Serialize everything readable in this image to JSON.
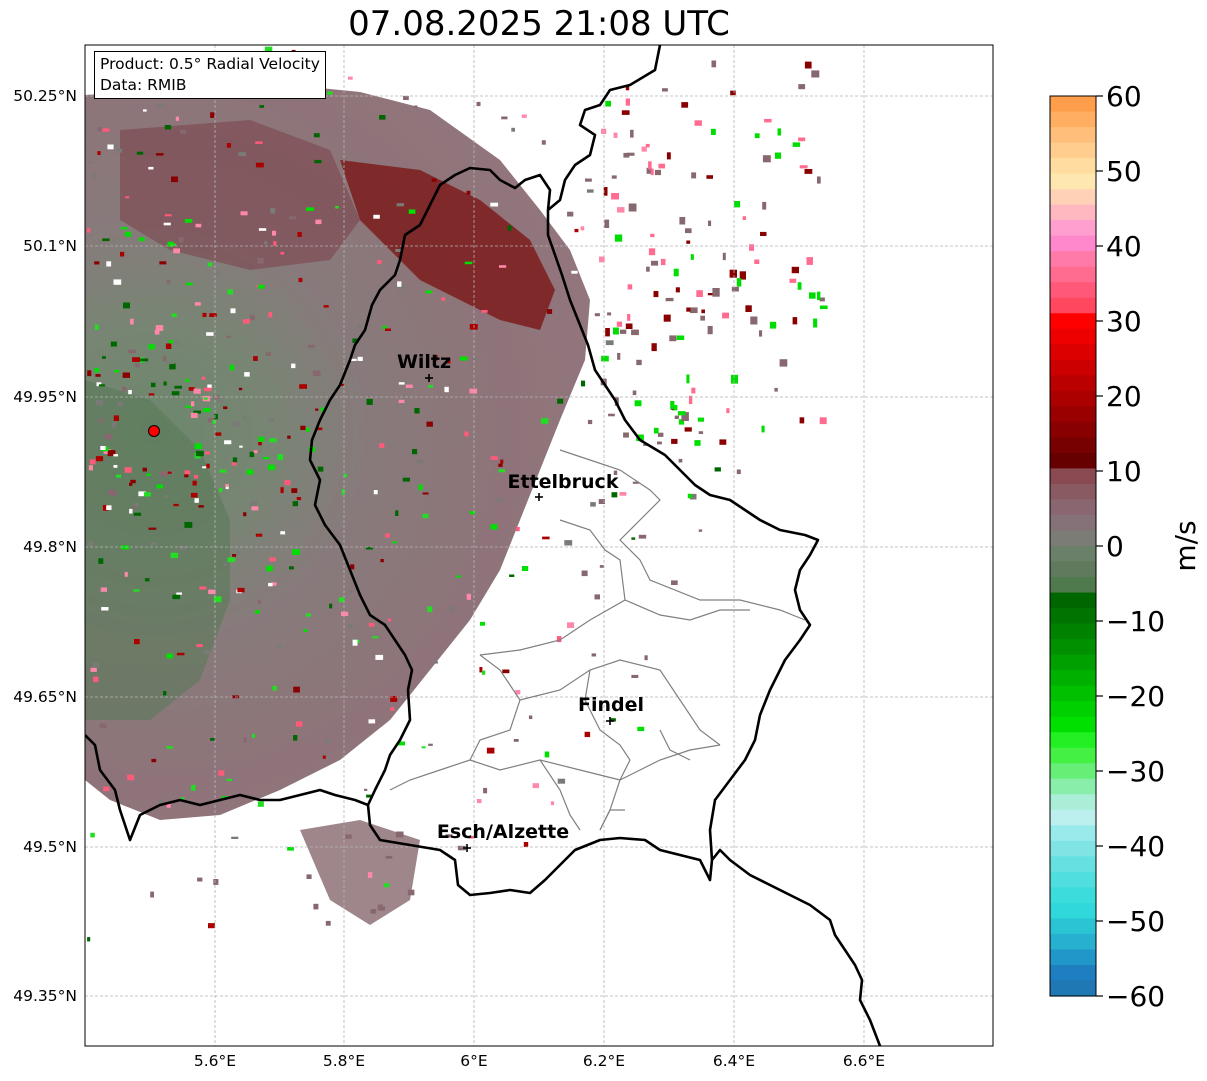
{
  "title": "07.08.2025 21:08 UTC",
  "info": {
    "product": "Product: 0.5° Radial Velocity",
    "source": "Data: RMIB"
  },
  "axes": {
    "lat_ticks": [
      "50.25°N",
      "50.1°N",
      "49.95°N",
      "49.8°N",
      "49.65°N",
      "49.5°N",
      "49.35°N"
    ],
    "lon_ticks": [
      "5.6°E",
      "5.8°E",
      "6°E",
      "6.2°E",
      "6.4°E",
      "6.6°E"
    ]
  },
  "cities": [
    {
      "name": "Wiltz"
    },
    {
      "name": "Ettelbruck"
    },
    {
      "name": "Findel"
    },
    {
      "name": "Esch/Alzette"
    }
  ],
  "colorbar": {
    "label": "m/s",
    "ticks": [
      "60",
      "50",
      "40",
      "30",
      "20",
      "10",
      "0",
      "−10",
      "−20",
      "−30",
      "−40",
      "−50",
      "−60"
    ],
    "min": -60,
    "max": 60
  },
  "colors": {
    "border": "#000000",
    "district_lines": "#808080",
    "radar_site": "#ff0000",
    "grid": "#b0b0b0"
  }
}
